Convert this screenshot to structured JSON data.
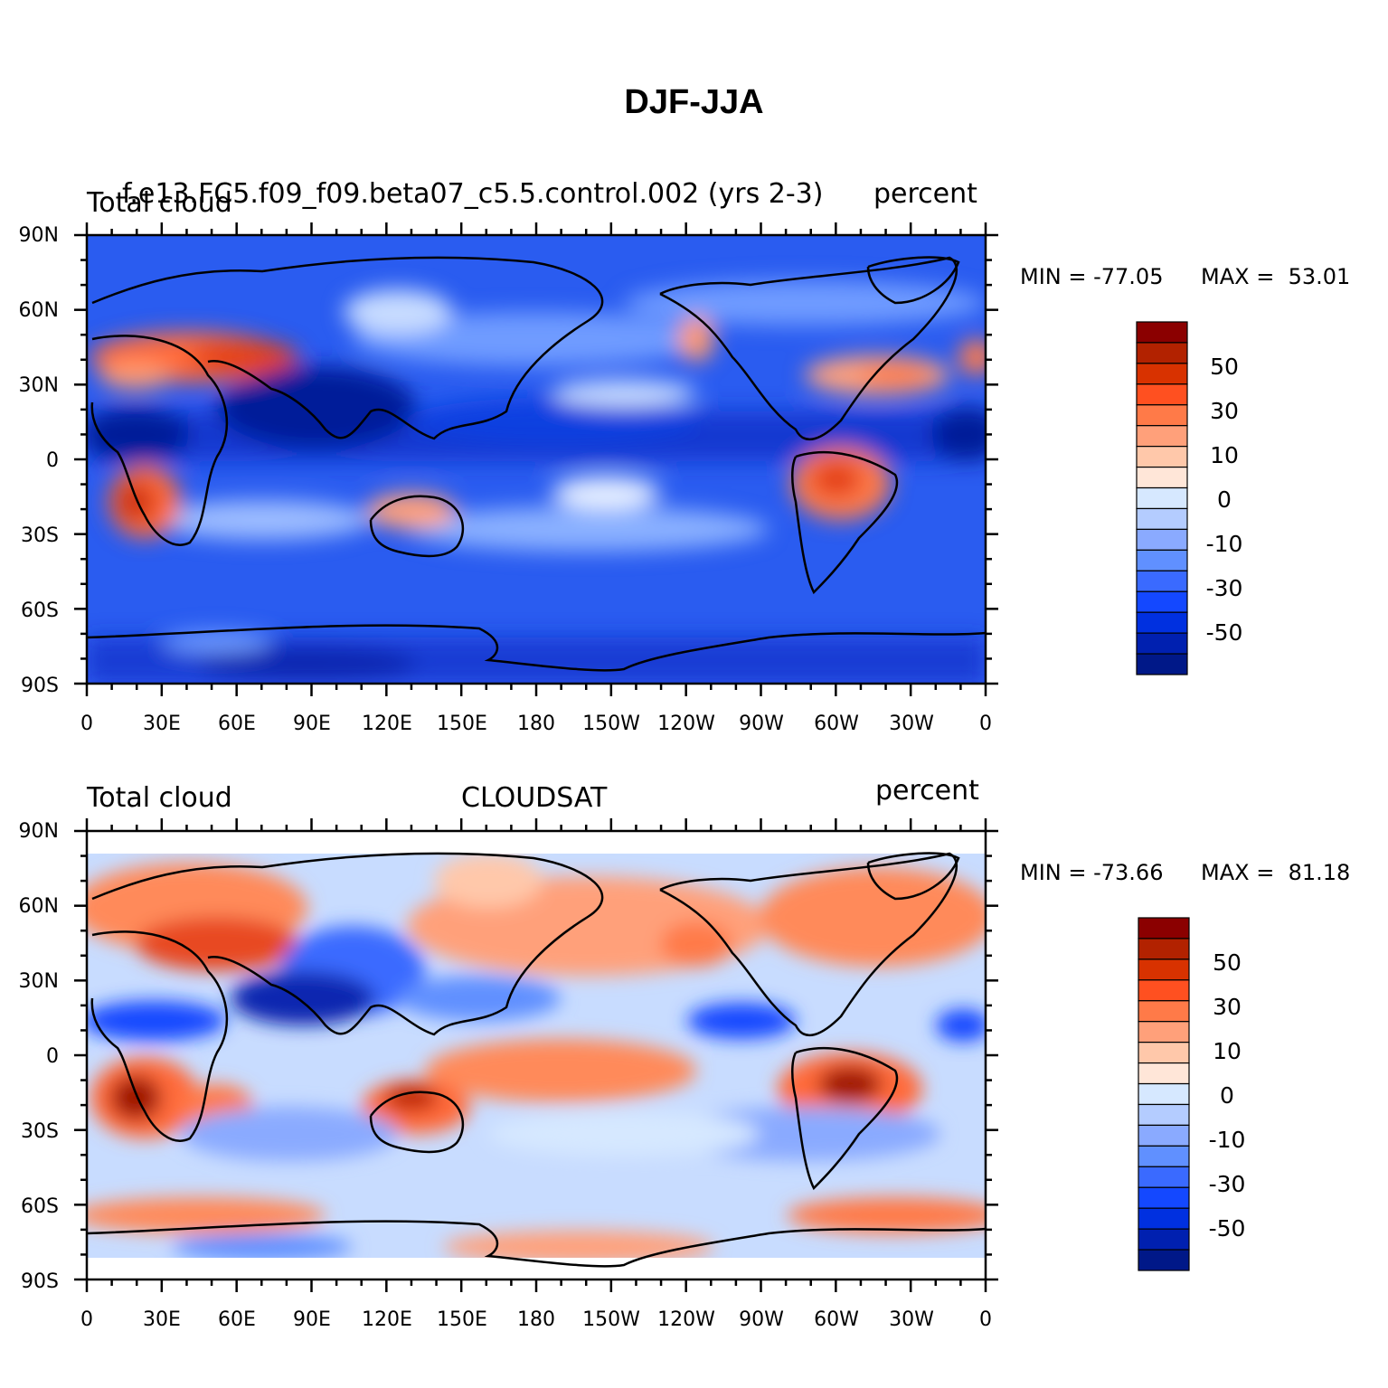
{
  "title": "DJF-JJA",
  "panels": [
    {
      "id": "model",
      "left_label": "Total cloud",
      "center_label": "f.e13.FC5.f09_f09.beta07_c5.5.control.002 (yrs 2-3)",
      "right_label": "percent",
      "min_label": "MIN = -77.05",
      "max_label": "MAX =  53.01",
      "min": -77.05,
      "max": 53.01
    },
    {
      "id": "cloudsat",
      "left_label": "Total cloud",
      "center_label": "CLOUDSAT",
      "right_label": "percent",
      "min_label": "MIN = -73.66",
      "max_label": "MAX =  81.18",
      "min": -73.66,
      "max": 81.18
    }
  ],
  "lat_labels": [
    "90N",
    "60N",
    "30N",
    "0",
    "30S",
    "60S",
    "90S"
  ],
  "lon_labels": [
    "0",
    "30E",
    "60E",
    "90E",
    "120E",
    "150E",
    "180",
    "150W",
    "120W",
    "90W",
    "60W",
    "30W",
    "0"
  ],
  "colorbar": {
    "labels": [
      "50",
      "30",
      "10",
      "0",
      "-10",
      "-30",
      "-50"
    ],
    "colors": [
      "#8b0000",
      "#b22200",
      "#d83200",
      "#ff5020",
      "#ff7a48",
      "#ffa07a",
      "#ffc8aa",
      "#ffe6d8",
      "#d6e8ff",
      "#b4ccff",
      "#8aaaff",
      "#6090ff",
      "#3a6aff",
      "#1448ff",
      "#0030e0",
      "#0020b0",
      "#001888"
    ]
  }
}
